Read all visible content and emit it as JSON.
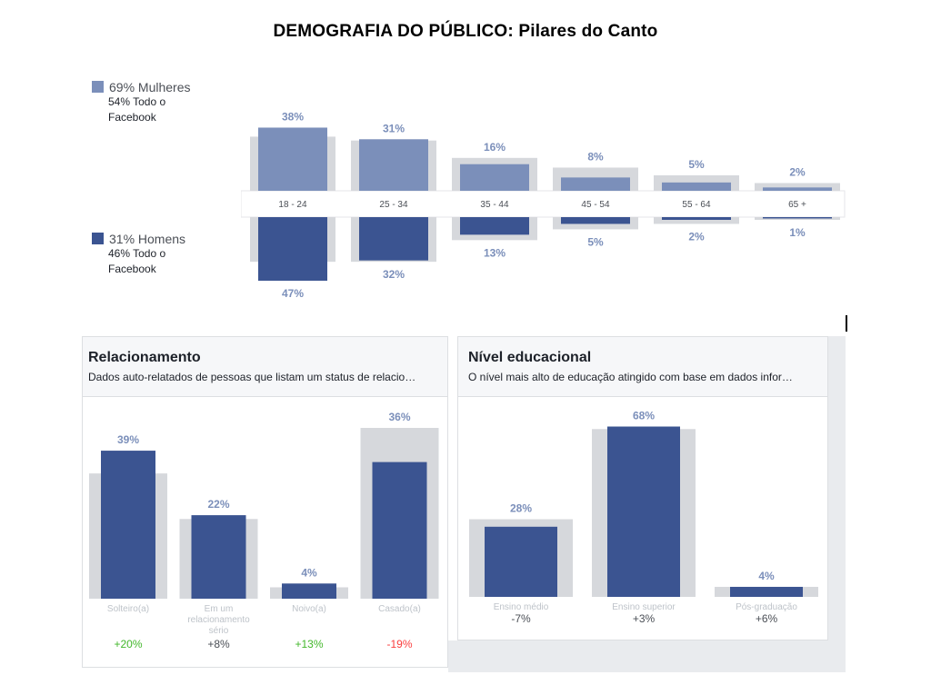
{
  "title": "DEMOGRAFIA  DO PÚBLICO:  Pilares do Canto",
  "colors": {
    "women": "#7b8fba",
    "men": "#3b5491",
    "bar_bg": "#d6d8dc",
    "positive": "#42b72a",
    "negative": "#fa3e3e",
    "neutral": "#4b4f56"
  },
  "legend": {
    "women": {
      "label": "69% Mulheres",
      "sub": "54% Todo o Facebook"
    },
    "men": {
      "label": "31% Homens",
      "sub": "46% Todo o Facebook"
    }
  },
  "relacionamento": {
    "title": "Relacionamento",
    "subtitle": "Dados auto-relatados de pessoas que listam um status de relacio…"
  },
  "educacao": {
    "title": "Nível educacional",
    "subtitle": "O nível mais alto de educação atingido com base em dados infor…"
  },
  "chart_data": [
    {
      "type": "bar",
      "categories": [
        "18 - 24",
        "25 - 34",
        "35 - 44",
        "45 - 54",
        "55 - 64",
        "65 +"
      ],
      "series": [
        {
          "name": "Mulheres",
          "values": [
            38,
            31,
            16,
            8,
            5,
            2
          ],
          "labels": [
            "38%",
            "31%",
            "16%",
            "8%",
            "5%",
            "2%"
          ],
          "facebook_values": [
            28,
            26,
            17,
            12,
            8,
            4
          ]
        },
        {
          "name": "Homens",
          "values": [
            47,
            32,
            13,
            5,
            2,
            1
          ],
          "labels": [
            "47%",
            "32%",
            "13%",
            "5%",
            "2%",
            "1%"
          ],
          "facebook_values": [
            33,
            33,
            17,
            9,
            5,
            2
          ]
        }
      ],
      "ylim": [
        0,
        47
      ]
    },
    {
      "type": "bar",
      "categories": [
        "Solteiro(a)",
        "Em um relacionamento sério",
        "Noivo(a)",
        "Casado(a)"
      ],
      "values": [
        39,
        22,
        4,
        36
      ],
      "labels": [
        "39%",
        "22%",
        "4%",
        "36%"
      ],
      "facebook_values": [
        33,
        21,
        3,
        45
      ],
      "differences": [
        "+20%",
        "+8%",
        "+13%",
        "-19%"
      ],
      "difference_status": [
        "positive",
        "neutral",
        "positive",
        "negative"
      ],
      "ylim": [
        0,
        45
      ]
    },
    {
      "type": "bar",
      "categories": [
        "Ensino médio",
        "Ensino superior",
        "Pós-graduação"
      ],
      "values": [
        28,
        68,
        4
      ],
      "labels": [
        "28%",
        "68%",
        "4%"
      ],
      "facebook_values": [
        31,
        67,
        4
      ],
      "differences": [
        "-7%",
        "+3%",
        "+6%"
      ],
      "ylim": [
        0,
        70
      ]
    }
  ]
}
